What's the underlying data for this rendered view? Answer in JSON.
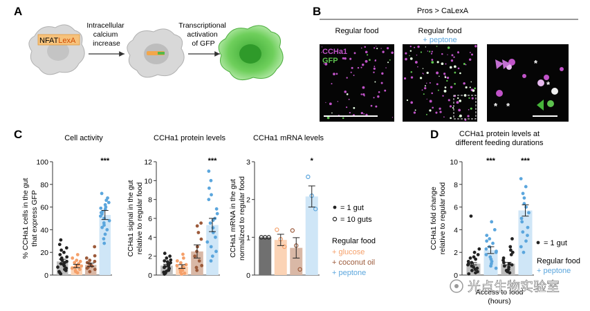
{
  "panels": {
    "A": {
      "label": "A",
      "reporter": {
        "part1": "NFAT",
        "part2": "LexA"
      },
      "step1": [
        "Intracellular",
        "calcium",
        "increase"
      ],
      "step2": [
        "Transcriptional",
        "activation",
        "of GFP"
      ]
    },
    "B": {
      "label": "B",
      "genotype": "Pros > CaLexA",
      "col1": "Regular food",
      "col2_line1": "Regular food",
      "col2_line2": "+ peptone",
      "stain1": "CCHa1",
      "stain2": "GFP",
      "asterisk": "*"
    },
    "C": {
      "label": "C"
    },
    "D": {
      "label": "D"
    }
  },
  "legends": {
    "gut_dot": "= 1 gut",
    "gut_pool": "= 10 guts",
    "diet_title": "Regular food",
    "diet_glucose": "+ glucose",
    "diet_coconut": "+ coconut oil",
    "diet_peptone": "+ peptone",
    "d_gut_dot": "= 1 gut",
    "d_diet_title": "Regular food",
    "d_diet_peptone": "+ peptone"
  },
  "watermark": "光点生物实验室",
  "colors": {
    "black": "#222222",
    "glucose": "#f5a06a",
    "glucose_bar": "#fbd3b5",
    "coconut": "#9c5a3a",
    "coconut_bar": "#d9b8a6",
    "peptone": "#5ba6dd",
    "peptone_bar": "#cfe6f7",
    "regular_bar": "#bdbdbd",
    "regular_bar_dark": "#707070",
    "gfp": "#5dc24e",
    "ccha1": "#c053c8"
  },
  "chart_data": [
    {
      "id": "cell-activity",
      "type": "bar",
      "title": "Cell activity",
      "ylabel": [
        "% CCHa1 cells in the gut",
        "that express GFP"
      ],
      "ylim": [
        0,
        100
      ],
      "yticks": [
        0,
        20,
        40,
        60,
        80,
        100
      ],
      "categories": [
        "Regular food",
        "+ glucose",
        "+ coconut oil",
        "+ peptone"
      ],
      "values": [
        12,
        8,
        9,
        53
      ],
      "errors": [
        2,
        1.5,
        1.5,
        4
      ],
      "points": [
        [
          31,
          27,
          24,
          22,
          20,
          18,
          16,
          15,
          14,
          13,
          12,
          11,
          10,
          9,
          8,
          7,
          6,
          5,
          4,
          3,
          2,
          1
        ],
        [
          18,
          15,
          13,
          12,
          11,
          10,
          9,
          8,
          8,
          7,
          6,
          5,
          4,
          3,
          2
        ],
        [
          25,
          17,
          15,
          13,
          12,
          11,
          10,
          9,
          8,
          7,
          6,
          5,
          3
        ],
        [
          72,
          68,
          66,
          64,
          62,
          60,
          59,
          58,
          56,
          55,
          54,
          52,
          50,
          48,
          46,
          44,
          42,
          40,
          36,
          32,
          28
        ]
      ],
      "significance": [
        "",
        "",
        "",
        "***"
      ]
    },
    {
      "id": "ccha1-protein",
      "type": "bar",
      "title": "CCHa1 protein levels",
      "ylabel": [
        "CCHa1 signal in the gut",
        "relative to regular food"
      ],
      "ylim": [
        0,
        12
      ],
      "yticks": [
        0,
        2,
        4,
        6,
        8,
        10,
        12
      ],
      "categories": [
        "Regular food",
        "+ glucose",
        "+ coconut oil",
        "+ peptone"
      ],
      "values": [
        1,
        0.9,
        2.5,
        5.3
      ],
      "errors": [
        0.15,
        0.2,
        0.7,
        0.7
      ],
      "points": [
        [
          2.3,
          2.0,
          1.8,
          1.6,
          1.5,
          1.4,
          1.3,
          1.2,
          1.1,
          1.0,
          0.9,
          0.8,
          0.7,
          0.6,
          0.5,
          0.4,
          0.3,
          0.2,
          0.1
        ],
        [
          2.2,
          1.8,
          1.5,
          1.3,
          1.1,
          1.0,
          0.9,
          0.8,
          0.6,
          0.5,
          0.4,
          0.3,
          0.2,
          0.1
        ],
        [
          5.5,
          5.2,
          4.5,
          3.8,
          3.0,
          2.5,
          2.0,
          1.5,
          1.0,
          0.8,
          0.5
        ],
        [
          11,
          10,
          9.2,
          8.5,
          8.0,
          7.0,
          6.5,
          6.0,
          5.8,
          5.5,
          5.0,
          4.5,
          4.0,
          3.5,
          3.0,
          2.5,
          2.0,
          1.5
        ]
      ],
      "significance": [
        "",
        "",
        "",
        "***"
      ]
    },
    {
      "id": "ccha1-mrna",
      "type": "bar",
      "title": "CCHa1 mRNA levels",
      "ylabel": [
        "CCHa1 mRNA in the gut",
        "normalized to regular food"
      ],
      "ylim": [
        0,
        3
      ],
      "yticks": [
        0,
        1,
        2,
        3
      ],
      "categories": [
        "Regular food",
        "+ glucose",
        "+ coconut oil",
        "+ peptone"
      ],
      "values": [
        1,
        0.93,
        0.72,
        2.08
      ],
      "errors": [
        0,
        0.15,
        0.27,
        0.28
      ],
      "points": [
        [
          1.0,
          1.0,
          1.0
        ],
        [
          1.2,
          0.95,
          0.75
        ],
        [
          1.18,
          0.78,
          0.15
        ],
        [
          2.6,
          2.1,
          1.75
        ]
      ],
      "significance": [
        "",
        "",
        "",
        "*"
      ]
    },
    {
      "id": "feeding-durations",
      "type": "bar",
      "title": [
        "CCHa1 protein levels at",
        "different feeding durations"
      ],
      "ylabel": [
        "CCHa1 fold change",
        "relative to regular food"
      ],
      "xlabel": [
        "Access to food",
        "(hours)"
      ],
      "ylim": [
        0,
        10
      ],
      "yticks": [
        0,
        2,
        4,
        6,
        8,
        10
      ],
      "categories": [
        "Regular food",
        "+ peptone",
        "Regular food",
        "+ peptone"
      ],
      "values": [
        1,
        2.2,
        1,
        5.7
      ],
      "errors": [
        0.1,
        0.3,
        0.12,
        0.5
      ],
      "points": [
        [
          5.2,
          2.3,
          2.0,
          1.8,
          1.6,
          1.5,
          1.4,
          1.2,
          1.1,
          1.0,
          0.9,
          0.8,
          0.7,
          0.6,
          0.5,
          0.4,
          0.3,
          0.2,
          0.1
        ],
        [
          4.7,
          4.0,
          3.5,
          3.2,
          3.0,
          2.8,
          2.5,
          2.3,
          2.1,
          2.0,
          1.8,
          1.6,
          1.4,
          1.2,
          1.0,
          0.8,
          0.6
        ],
        [
          3.2,
          2.5,
          2.2,
          2.0,
          1.8,
          1.5,
          1.3,
          1.1,
          1.0,
          0.9,
          0.8,
          0.7,
          0.5,
          0.4,
          0.3,
          0.2
        ],
        [
          8.5,
          7.8,
          7.2,
          6.8,
          6.3,
          6.0,
          5.5,
          5.0,
          4.7,
          4.2,
          3.8,
          3.5,
          3.0,
          2.5,
          2.0
        ]
      ],
      "significance": [
        "",
        "***",
        "",
        "***"
      ]
    }
  ]
}
